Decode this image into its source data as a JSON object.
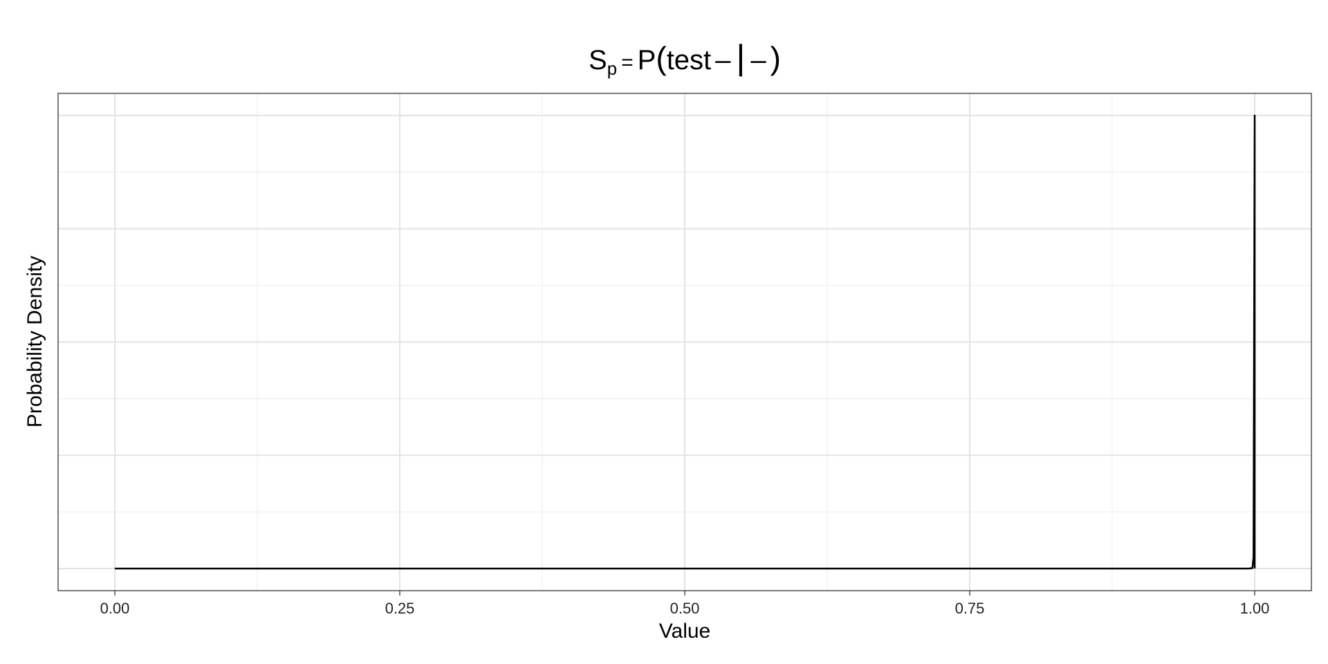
{
  "chart_data": {
    "type": "line",
    "title": {
      "symbol": "S",
      "subscript": "p",
      "equals": "=",
      "func": "P",
      "open_paren": "(",
      "event": "test",
      "event_sign": "–",
      "bar": "|",
      "condition": "–",
      "close_paren": ")"
    },
    "xlabel": "Value",
    "ylabel": "Probability Density",
    "xlim": [
      0,
      1
    ],
    "ylim": [
      0,
      1
    ],
    "x_ticks": [
      "0.00",
      "0.25",
      "0.50",
      "0.75",
      "1.00"
    ],
    "y_tick_labels_shown": false,
    "grid": true,
    "series": [
      {
        "color": "#000000",
        "x": [
          0.0,
          0.25,
          0.5,
          0.75,
          0.995,
          0.998,
          0.999,
          1.0,
          1.0
        ],
        "y": [
          0.0,
          0.0,
          0.0,
          0.0,
          0.0,
          0.001,
          0.025,
          1.0,
          0.0
        ]
      }
    ]
  }
}
